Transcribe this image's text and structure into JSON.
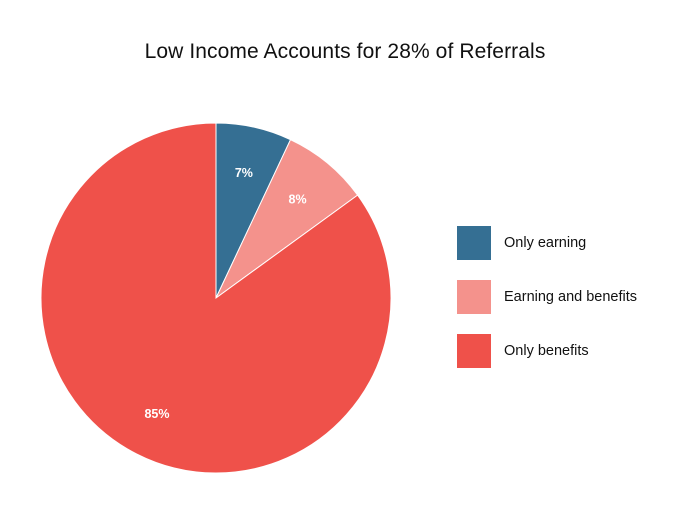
{
  "chart_data": {
    "type": "pie",
    "title": "Low Income Accounts for 28% of Referrals",
    "legend_position": "right",
    "slices": [
      {
        "name": "Only earning",
        "value": 7,
        "label": "7%",
        "color": "#356f93"
      },
      {
        "name": "Earning and benefits",
        "value": 8,
        "label": "8%",
        "color": "#f4928c"
      },
      {
        "name": "Only benefits",
        "value": 85,
        "label": "85%",
        "color": "#ef514a"
      }
    ]
  }
}
